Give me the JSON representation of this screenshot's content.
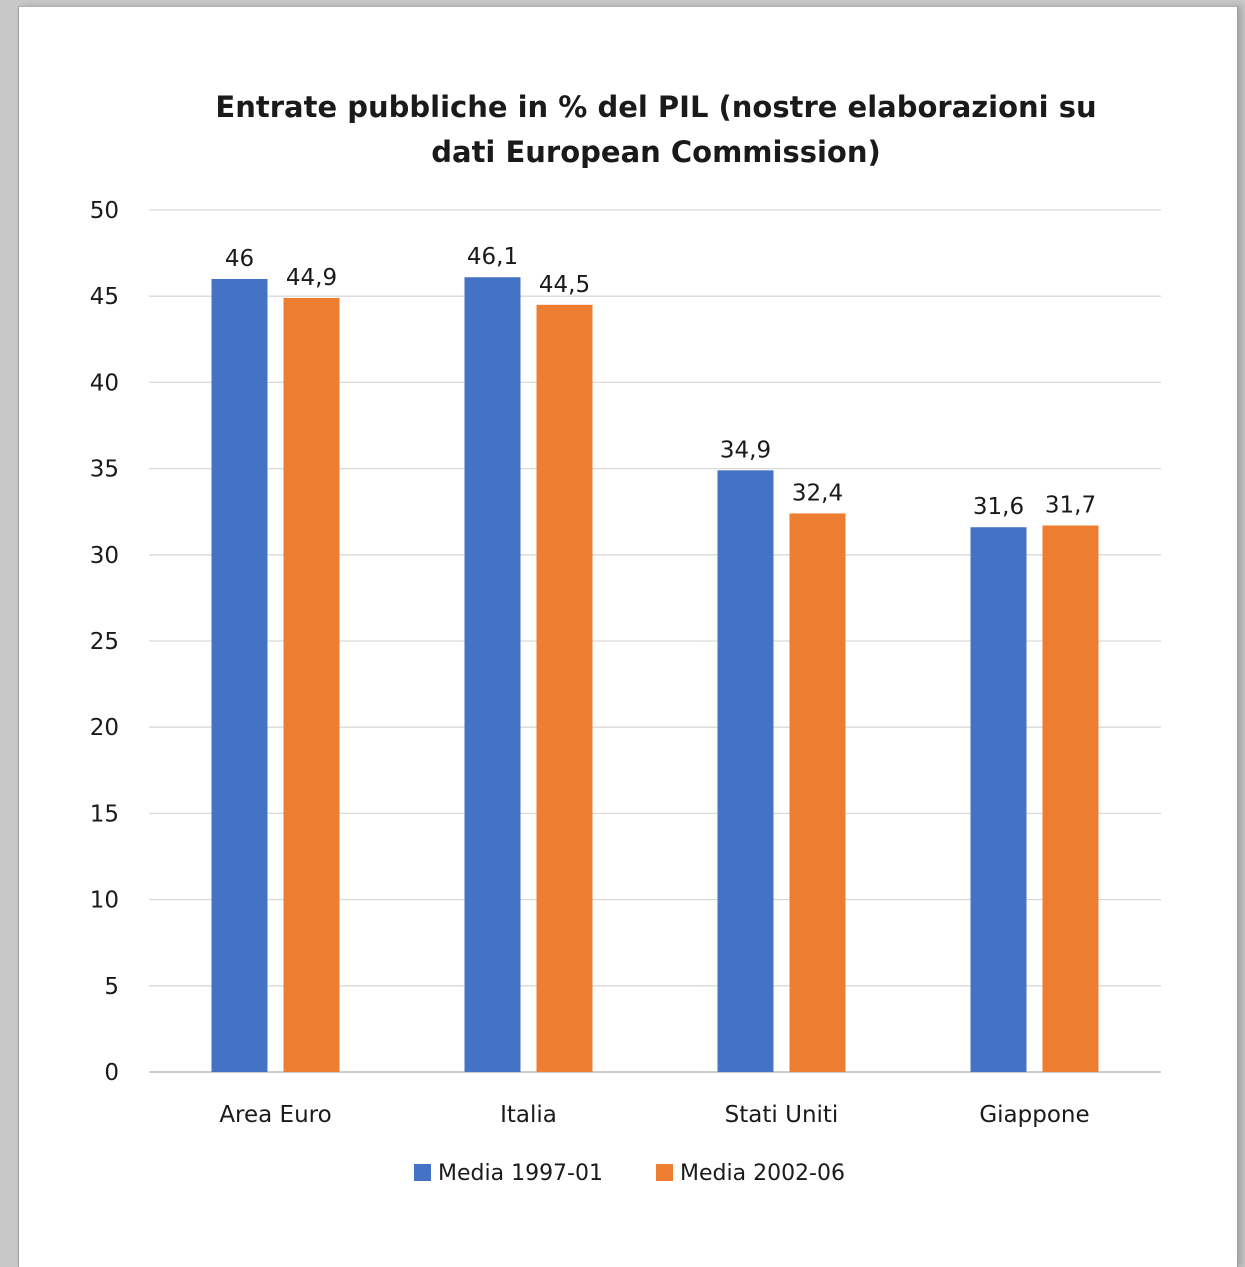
{
  "chart_data": {
    "type": "bar",
    "title_lines": [
      "Entrate pubbliche in % del PIL (nostre elaborazioni su",
      "dati European Commission)"
    ],
    "categories": [
      "Area Euro",
      "Italia",
      "Stati Uniti",
      "Giappone"
    ],
    "series": [
      {
        "name": "Media 1997-01",
        "color": "#4472C4",
        "values": [
          46,
          46.1,
          34.9,
          31.6
        ],
        "labels": [
          "46",
          "46,1",
          "34,9",
          "31,6"
        ]
      },
      {
        "name": "Media 2002-06",
        "color": "#ED7D31",
        "values": [
          44.9,
          44.5,
          32.4,
          31.7
        ],
        "labels": [
          "44,9",
          "44,5",
          "32,4",
          "31,7"
        ]
      }
    ],
    "ylim": [
      0,
      50
    ],
    "yticks": [
      0,
      5,
      10,
      15,
      20,
      25,
      30,
      35,
      40,
      45,
      50
    ],
    "grid": true,
    "legend_position": "bottom",
    "gridline_color": "#d9d9d9"
  }
}
